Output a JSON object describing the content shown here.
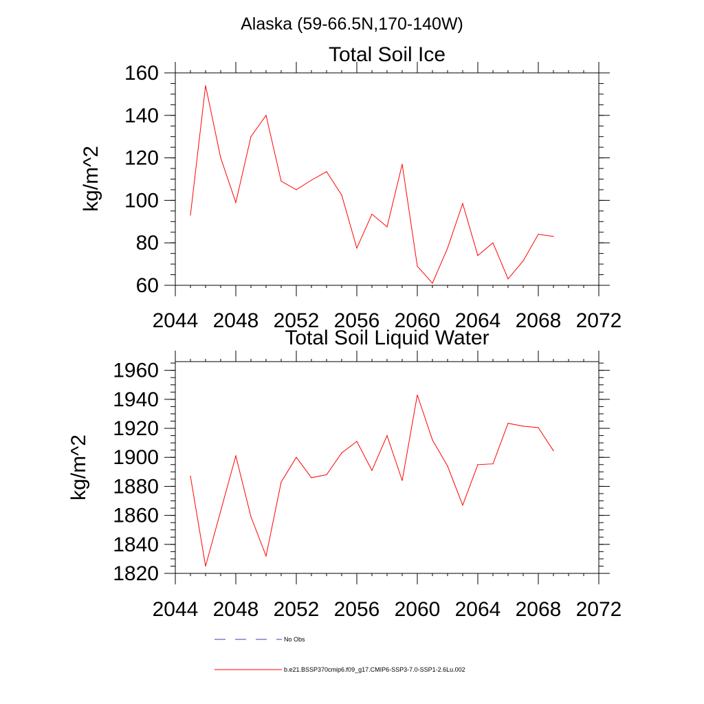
{
  "page_title": "Alaska (59-66.5N,170-140W)",
  "chart_data": [
    {
      "type": "line",
      "title": "Total Soil Ice",
      "ylabel": "kg/m^2",
      "xlabel": "",
      "xlim": [
        2044,
        2072
      ],
      "ylim": [
        60,
        160
      ],
      "x_ticks": [
        2044,
        2048,
        2052,
        2056,
        2060,
        2064,
        2068,
        2072
      ],
      "y_ticks": [
        60,
        80,
        100,
        120,
        140,
        160
      ],
      "x_tick_labels": [
        "2044",
        "2048",
        "2052",
        "2056",
        "2060",
        "2064",
        "2068",
        "2072"
      ],
      "y_tick_labels": [
        "60",
        "80",
        "100",
        "120",
        "140",
        "160"
      ],
      "series": [
        {
          "name": "b.e21.BSSP370cmip6.f09_g17.CMIP6-SSP3-7.0-SSP1-2.6Lu.002",
          "color": "#ff0000",
          "x": [
            2045,
            2046,
            2047,
            2048,
            2049,
            2050,
            2051,
            2052,
            2053,
            2054,
            2055,
            2056,
            2057,
            2058,
            2059,
            2060,
            2061,
            2062,
            2063,
            2064,
            2065,
            2066,
            2067,
            2068,
            2069
          ],
          "values": [
            93,
            154,
            120,
            99,
            130,
            140,
            109,
            105,
            109.5,
            113.5,
            102.5,
            77.5,
            93.5,
            87.5,
            117,
            69,
            61,
            77.5,
            98.5,
            74,
            80,
            63,
            71.5,
            84,
            83
          ]
        }
      ]
    },
    {
      "type": "line",
      "title": "Total Soil Liquid Water",
      "ylabel": "kg/m^2",
      "xlabel": "",
      "xlim": [
        2044,
        2072
      ],
      "ylim": [
        1820,
        1966
      ],
      "x_ticks": [
        2044,
        2048,
        2052,
        2056,
        2060,
        2064,
        2068,
        2072
      ],
      "y_ticks": [
        1820,
        1840,
        1860,
        1880,
        1900,
        1920,
        1940,
        1960
      ],
      "x_tick_labels": [
        "2044",
        "2048",
        "2052",
        "2056",
        "2060",
        "2064",
        "2068",
        "2072"
      ],
      "y_tick_labels": [
        "1820",
        "1840",
        "1860",
        "1880",
        "1900",
        "1920",
        "1940",
        "1960"
      ],
      "series": [
        {
          "name": "b.e21.BSSP370cmip6.f09_g17.CMIP6-SSP3-7.0-SSP1-2.6Lu.002",
          "color": "#ff0000",
          "x": [
            2045,
            2046,
            2047,
            2048,
            2049,
            2050,
            2051,
            2052,
            2053,
            2054,
            2055,
            2056,
            2057,
            2058,
            2059,
            2060,
            2061,
            2062,
            2063,
            2064,
            2065,
            2066,
            2067,
            2068,
            2069
          ],
          "values": [
            1887,
            1825,
            1863,
            1901,
            1859,
            1832,
            1883,
            1900,
            1886,
            1888,
            1903,
            1911,
            1891,
            1915,
            1884,
            1943,
            1912,
            1894,
            1867,
            1895,
            1895.5,
            1923.5,
            1921.5,
            1920.5,
            1904.5
          ]
        }
      ]
    }
  ],
  "legend": {
    "placement": "bottom",
    "items": [
      {
        "label": "No Obs",
        "color": "#3b3bb0",
        "style": "dashed"
      },
      {
        "label": "b.e21.BSSP370cmip6.f09_g17.CMIP6-SSP3-7.0-SSP1-2.6Lu.002",
        "color": "#ff0000",
        "style": "solid"
      }
    ]
  }
}
